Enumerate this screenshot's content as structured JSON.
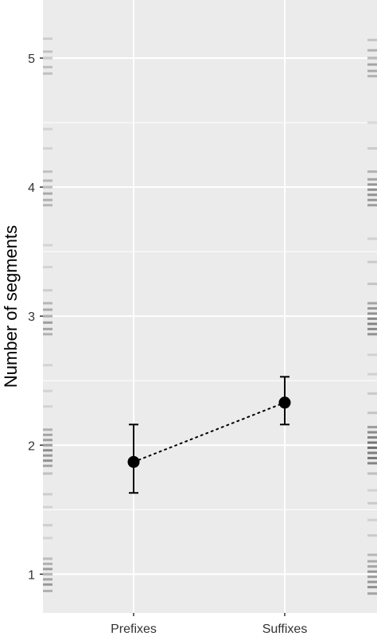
{
  "chart_data": {
    "type": "scatter",
    "title": "",
    "xlabel": "",
    "ylabel": "Number of segments",
    "categories": [
      "Prefixes",
      "Suffixes"
    ],
    "ylim": [
      0.7,
      5.45
    ],
    "yticks": [
      "1",
      "2",
      "3",
      "4",
      "5"
    ],
    "grid": true,
    "connector": "dotted",
    "series": [
      {
        "points": [
          {
            "x": "Prefixes",
            "y": 1.87,
            "ymin": 1.63,
            "ymax": 2.16
          },
          {
            "x": "Suffixes",
            "y": 2.33,
            "ymin": 2.16,
            "ymax": 2.53
          }
        ]
      }
    ],
    "rug": {
      "left": [
        [
          0.87,
          0.5
        ],
        [
          0.92,
          0.7
        ],
        [
          0.96,
          0.6
        ],
        [
          1.0,
          0.55
        ],
        [
          1.04,
          0.65
        ],
        [
          1.08,
          0.5
        ],
        [
          1.12,
          0.4
        ],
        [
          1.28,
          0.2
        ],
        [
          1.38,
          0.25
        ],
        [
          1.52,
          0.2
        ],
        [
          1.62,
          0.25
        ],
        [
          1.78,
          0.35
        ],
        [
          1.84,
          0.6
        ],
        [
          1.88,
          0.75
        ],
        [
          1.92,
          0.7
        ],
        [
          1.96,
          0.8
        ],
        [
          2.0,
          0.75
        ],
        [
          2.04,
          0.65
        ],
        [
          2.08,
          0.6
        ],
        [
          2.12,
          0.5
        ],
        [
          2.3,
          0.2
        ],
        [
          2.42,
          0.2
        ],
        [
          2.62,
          0.2
        ],
        [
          2.86,
          0.5
        ],
        [
          2.9,
          0.6
        ],
        [
          2.95,
          0.65
        ],
        [
          3.0,
          0.6
        ],
        [
          3.05,
          0.55
        ],
        [
          3.1,
          0.45
        ],
        [
          3.2,
          0.25
        ],
        [
          3.38,
          0.2
        ],
        [
          3.55,
          0.2
        ],
        [
          3.86,
          0.45
        ],
        [
          3.9,
          0.5
        ],
        [
          3.95,
          0.55
        ],
        [
          4.0,
          0.5
        ],
        [
          4.05,
          0.45
        ],
        [
          4.12,
          0.35
        ],
        [
          4.3,
          0.2
        ],
        [
          4.45,
          0.2
        ],
        [
          4.88,
          0.35
        ],
        [
          4.93,
          0.4
        ],
        [
          5.0,
          0.4
        ],
        [
          5.05,
          0.35
        ],
        [
          5.15,
          0.25
        ]
      ],
      "right": [
        [
          0.85,
          0.55
        ],
        [
          0.9,
          0.7
        ],
        [
          0.94,
          0.65
        ],
        [
          0.98,
          0.6
        ],
        [
          1.02,
          0.65
        ],
        [
          1.06,
          0.55
        ],
        [
          1.1,
          0.5
        ],
        [
          1.15,
          0.4
        ],
        [
          1.3,
          0.25
        ],
        [
          1.42,
          0.2
        ],
        [
          1.55,
          0.25
        ],
        [
          1.65,
          0.2
        ],
        [
          1.78,
          0.35
        ],
        [
          1.86,
          0.8
        ],
        [
          1.9,
          0.9
        ],
        [
          1.94,
          0.85
        ],
        [
          1.98,
          0.95
        ],
        [
          2.02,
          0.9
        ],
        [
          2.06,
          0.8
        ],
        [
          2.1,
          0.75
        ],
        [
          2.14,
          0.6
        ],
        [
          2.25,
          0.3
        ],
        [
          2.4,
          0.25
        ],
        [
          2.55,
          0.2
        ],
        [
          2.7,
          0.2
        ],
        [
          2.86,
          0.7
        ],
        [
          2.9,
          0.75
        ],
        [
          2.94,
          0.8
        ],
        [
          2.98,
          0.75
        ],
        [
          3.02,
          0.7
        ],
        [
          3.06,
          0.65
        ],
        [
          3.1,
          0.55
        ],
        [
          3.25,
          0.3
        ],
        [
          3.42,
          0.25
        ],
        [
          3.6,
          0.2
        ],
        [
          3.86,
          0.6
        ],
        [
          3.9,
          0.65
        ],
        [
          3.94,
          0.7
        ],
        [
          3.98,
          0.7
        ],
        [
          4.02,
          0.65
        ],
        [
          4.06,
          0.55
        ],
        [
          4.12,
          0.45
        ],
        [
          4.3,
          0.25
        ],
        [
          4.5,
          0.2
        ],
        [
          4.86,
          0.45
        ],
        [
          4.9,
          0.5
        ],
        [
          4.95,
          0.55
        ],
        [
          5.0,
          0.5
        ],
        [
          5.06,
          0.45
        ],
        [
          5.14,
          0.3
        ]
      ]
    },
    "colors": {
      "panel": "#ebebeb",
      "gridline": "#ffffff",
      "point": "#000000",
      "rug": "#000000",
      "tick_label": "#333333"
    }
  }
}
